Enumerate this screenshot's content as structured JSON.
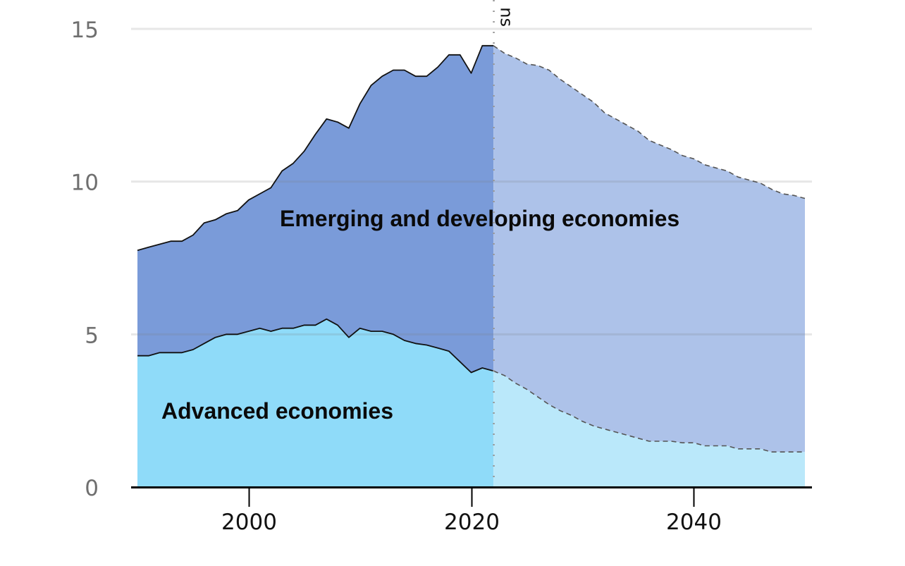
{
  "chart_data": {
    "type": "area",
    "stacked": true,
    "title": "",
    "xlabel": "",
    "ylabel": "",
    "xlim": [
      1990,
      2050
    ],
    "ylim": [
      0,
      15
    ],
    "yticks": [
      0,
      5,
      10,
      15
    ],
    "ytick_labels": [
      "0",
      "5",
      "10",
      "15"
    ],
    "xticks": [
      2000,
      2020,
      2040
    ],
    "xtick_labels": [
      "2000",
      "2020",
      "2040"
    ],
    "grid": "horizontal",
    "projection_start": 2022,
    "projection_label": "ns",
    "x": [
      1990,
      1991,
      1992,
      1993,
      1994,
      1995,
      1996,
      1997,
      1998,
      1999,
      2000,
      2001,
      2002,
      2003,
      2004,
      2005,
      2006,
      2007,
      2008,
      2009,
      2010,
      2011,
      2012,
      2013,
      2014,
      2015,
      2016,
      2017,
      2018,
      2019,
      2020,
      2021,
      2022,
      2023,
      2024,
      2025,
      2026,
      2027,
      2028,
      2029,
      2030,
      2031,
      2032,
      2033,
      2034,
      2035,
      2036,
      2037,
      2038,
      2039,
      2040,
      2041,
      2042,
      2043,
      2044,
      2045,
      2046,
      2047,
      2048,
      2049,
      2050
    ],
    "series": [
      {
        "name": "Advanced economies",
        "kind": "lower",
        "colors": {
          "historical": "#8FDBF9",
          "projected": "#BAE8FA"
        },
        "values": [
          4.3,
          4.3,
          4.4,
          4.4,
          4.4,
          4.5,
          4.7,
          4.9,
          5.0,
          5.0,
          5.1,
          5.2,
          5.1,
          5.2,
          5.2,
          5.3,
          5.3,
          5.5,
          5.3,
          4.9,
          5.2,
          5.1,
          5.1,
          5.0,
          4.8,
          4.7,
          4.65,
          4.55,
          4.45,
          4.1,
          3.75,
          3.9,
          3.8,
          3.65,
          3.4,
          3.2,
          2.95,
          2.7,
          2.5,
          2.35,
          2.15,
          2.0,
          1.9,
          1.8,
          1.7,
          1.6,
          1.5,
          1.5,
          1.5,
          1.45,
          1.45,
          1.35,
          1.35,
          1.35,
          1.25,
          1.25,
          1.25,
          1.15,
          1.15,
          1.15,
          1.15
        ]
      },
      {
        "name": "Emerging and developing economies",
        "kind": "total",
        "colors": {
          "historical": "#7A9BD9",
          "projected": "#ADC2E9"
        },
        "total_values": [
          7.75,
          7.85,
          7.95,
          8.05,
          8.05,
          8.25,
          8.65,
          8.75,
          8.95,
          9.05,
          9.4,
          9.6,
          9.8,
          10.35,
          10.6,
          11.0,
          11.55,
          12.05,
          11.95,
          11.75,
          12.55,
          13.15,
          13.45,
          13.65,
          13.65,
          13.45,
          13.45,
          13.75,
          14.15,
          14.15,
          13.55,
          14.45,
          14.45,
          14.2,
          14.05,
          13.85,
          13.8,
          13.65,
          13.35,
          13.1,
          12.85,
          12.6,
          12.25,
          12.05,
          11.85,
          11.65,
          11.35,
          11.2,
          11.05,
          10.85,
          10.75,
          10.55,
          10.45,
          10.35,
          10.15,
          10.05,
          9.95,
          9.75,
          9.6,
          9.55,
          9.45
        ]
      }
    ],
    "annotations": [
      {
        "text": "Emerging and developing economies",
        "series": "Emerging and developing economies"
      },
      {
        "text": "Advanced economies",
        "series": "Advanced economies"
      }
    ],
    "colors": {
      "grid": "#e3e3e3",
      "axis": "#000000",
      "outline": "#111111",
      "projection_outline": "#555555",
      "projection_divider": "#999999"
    }
  }
}
